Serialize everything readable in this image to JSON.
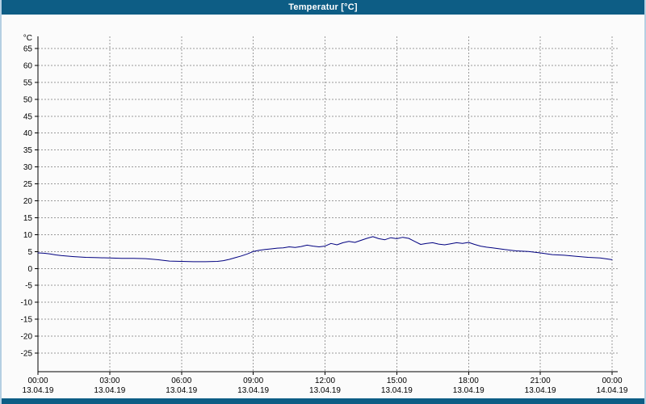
{
  "window": {
    "title": "Temperatur [°C]"
  },
  "colors": {
    "titlebar_bg": "#0d5d85",
    "titlebar_text": "#ffffff",
    "bottombar_bg": "#0d5d85",
    "chart_bg": "#fbfbfb",
    "grid": "#9a9a9a",
    "axis": "#000000",
    "line": "#000080",
    "frame": "#b5cfe2"
  },
  "chart_data": {
    "type": "line",
    "title": "Temperatur [°C]",
    "ylabel_unit": "°C",
    "ylim": [
      -25,
      65
    ],
    "ytick_step": 5,
    "yticks": [
      65,
      60,
      55,
      50,
      45,
      40,
      35,
      30,
      25,
      20,
      15,
      10,
      5,
      0,
      -5,
      -10,
      -15,
      -20,
      -25
    ],
    "grid": true,
    "x_range_hours": [
      0,
      24
    ],
    "xtick_interval_hours": 3,
    "xticks": [
      {
        "hour": 0,
        "time": "00:00",
        "date": "13.04.19"
      },
      {
        "hour": 3,
        "time": "03:00",
        "date": "13.04.19"
      },
      {
        "hour": 6,
        "time": "06:00",
        "date": "13.04.19"
      },
      {
        "hour": 9,
        "time": "09:00",
        "date": "13.04.19"
      },
      {
        "hour": 12,
        "time": "12:00",
        "date": "13.04.19"
      },
      {
        "hour": 15,
        "time": "15:00",
        "date": "13.04.19"
      },
      {
        "hour": 18,
        "time": "18:00",
        "date": "13.04.19"
      },
      {
        "hour": 21,
        "time": "21:00",
        "date": "13.04.19"
      },
      {
        "hour": 24,
        "time": "00:00",
        "date": "14.04.19"
      }
    ],
    "series": [
      {
        "name": "Temperatur",
        "color": "#000080",
        "points": [
          [
            0,
            4.6
          ],
          [
            0.25,
            4.5
          ],
          [
            0.5,
            4.3
          ],
          [
            0.75,
            4.0
          ],
          [
            1,
            3.8
          ],
          [
            1.5,
            3.5
          ],
          [
            2,
            3.3
          ],
          [
            2.5,
            3.2
          ],
          [
            3,
            3.1
          ],
          [
            3.5,
            3.0
          ],
          [
            4,
            3.0
          ],
          [
            4.5,
            2.9
          ],
          [
            5,
            2.6
          ],
          [
            5.25,
            2.4
          ],
          [
            5.5,
            2.2
          ],
          [
            6,
            2.1
          ],
          [
            6.5,
            2.0
          ],
          [
            7,
            2.0
          ],
          [
            7.5,
            2.1
          ],
          [
            7.75,
            2.3
          ],
          [
            8,
            2.7
          ],
          [
            8.25,
            3.2
          ],
          [
            8.5,
            3.7
          ],
          [
            8.75,
            4.3
          ],
          [
            9,
            5.0
          ],
          [
            9.25,
            5.4
          ],
          [
            9.5,
            5.6
          ],
          [
            9.75,
            5.8
          ],
          [
            10,
            6.0
          ],
          [
            10.25,
            6.1
          ],
          [
            10.5,
            6.4
          ],
          [
            10.75,
            6.2
          ],
          [
            11,
            6.5
          ],
          [
            11.25,
            6.9
          ],
          [
            11.5,
            6.6
          ],
          [
            11.75,
            6.4
          ],
          [
            12,
            6.6
          ],
          [
            12.25,
            7.4
          ],
          [
            12.5,
            7.0
          ],
          [
            12.75,
            7.6
          ],
          [
            13,
            8.0
          ],
          [
            13.25,
            7.7
          ],
          [
            13.5,
            8.3
          ],
          [
            13.75,
            8.9
          ],
          [
            14,
            9.4
          ],
          [
            14.25,
            8.8
          ],
          [
            14.5,
            8.5
          ],
          [
            14.75,
            9.1
          ],
          [
            15,
            8.8
          ],
          [
            15.25,
            9.2
          ],
          [
            15.5,
            8.9
          ],
          [
            15.75,
            8.0
          ],
          [
            16,
            7.1
          ],
          [
            16.25,
            7.4
          ],
          [
            16.5,
            7.6
          ],
          [
            16.75,
            7.2
          ],
          [
            17,
            7.0
          ],
          [
            17.25,
            7.3
          ],
          [
            17.5,
            7.6
          ],
          [
            17.75,
            7.4
          ],
          [
            18,
            7.7
          ],
          [
            18.25,
            7.1
          ],
          [
            18.5,
            6.6
          ],
          [
            18.75,
            6.3
          ],
          [
            19,
            6.1
          ],
          [
            19.5,
            5.6
          ],
          [
            20,
            5.2
          ],
          [
            20.5,
            5.0
          ],
          [
            21,
            4.6
          ],
          [
            21.5,
            4.1
          ],
          [
            22,
            3.9
          ],
          [
            22.5,
            3.6
          ],
          [
            23,
            3.3
          ],
          [
            23.5,
            3.1
          ],
          [
            24,
            2.6
          ]
        ]
      }
    ]
  }
}
